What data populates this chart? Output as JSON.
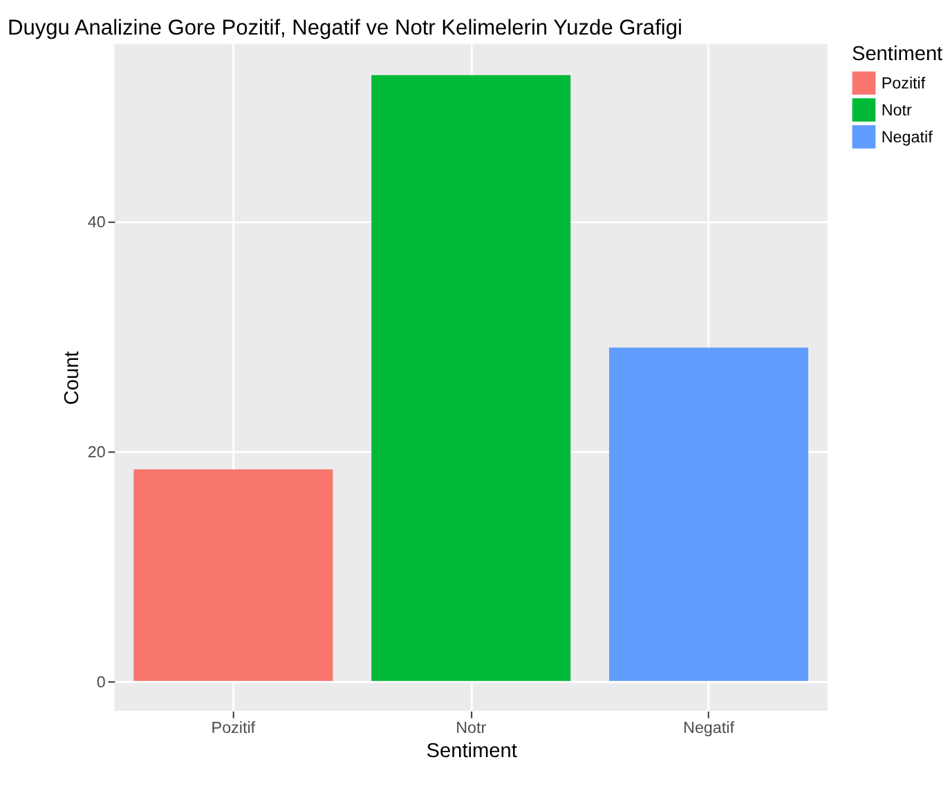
{
  "chart_data": {
    "type": "bar",
    "title": "Duygu Analizine Gore Pozitif, Negatif ve Notr Kelimelerin Yuzde Grafigi",
    "xlabel": "Sentiment",
    "ylabel": "Count",
    "legend_title": "Sentiment",
    "categories": [
      "Pozitif",
      "Notr",
      "Negatif"
    ],
    "series": [
      {
        "name": "Pozitif",
        "color": "#f8766d",
        "values": [
          18.4,
          null,
          null
        ]
      },
      {
        "name": "Notr",
        "color": "#00ba38",
        "values": [
          null,
          52.7,
          null
        ]
      },
      {
        "name": "Negatif",
        "color": "#619cff",
        "values": [
          null,
          null,
          29.0
        ]
      }
    ],
    "ylim": [
      -2.6,
      55.4
    ],
    "yticks": [
      0,
      20,
      40
    ],
    "grid": true,
    "legend": "right"
  }
}
